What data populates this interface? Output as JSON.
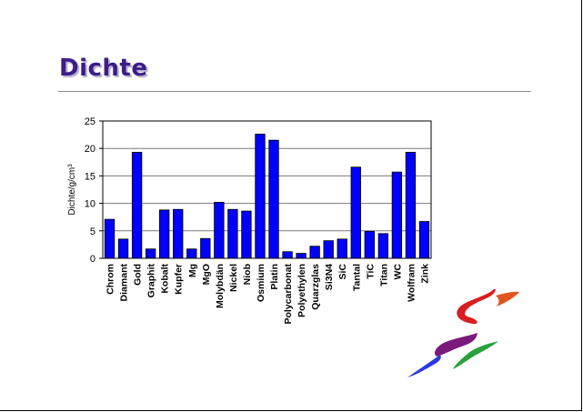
{
  "slide": {
    "title": "Dichte"
  },
  "chart_data": {
    "type": "bar",
    "title": "",
    "xlabel": "",
    "ylabel": "Dichte/g/cm³",
    "ylim": [
      0,
      25
    ],
    "yticks": [
      0,
      5,
      10,
      15,
      20,
      25
    ],
    "grid": true,
    "bar_color": "#0000ff",
    "categories": [
      "Chrom",
      "Diamant",
      "Gold",
      "Graphit",
      "Kobalt",
      "Kupfer",
      "Mg",
      "MgO",
      "Molybdän",
      "Nickel",
      "Niob",
      "Osmium",
      "Platin",
      "Polycarbonat",
      "Polyethylen",
      "Quarzglas",
      "Si3N4",
      "SiC",
      "Tantal",
      "TiC",
      "Titan",
      "WC",
      "Wolfram",
      "Zink"
    ],
    "values": [
      7.1,
      3.5,
      19.3,
      1.7,
      8.8,
      8.9,
      1.7,
      3.6,
      10.2,
      8.9,
      8.6,
      22.6,
      21.5,
      1.2,
      0.9,
      2.2,
      3.2,
      3.5,
      16.6,
      4.9,
      4.5,
      15.7,
      19.3,
      6.7
    ]
  },
  "colors": {
    "title": "#3d1d86",
    "bar": "#0000ff",
    "rule": "#909090"
  }
}
